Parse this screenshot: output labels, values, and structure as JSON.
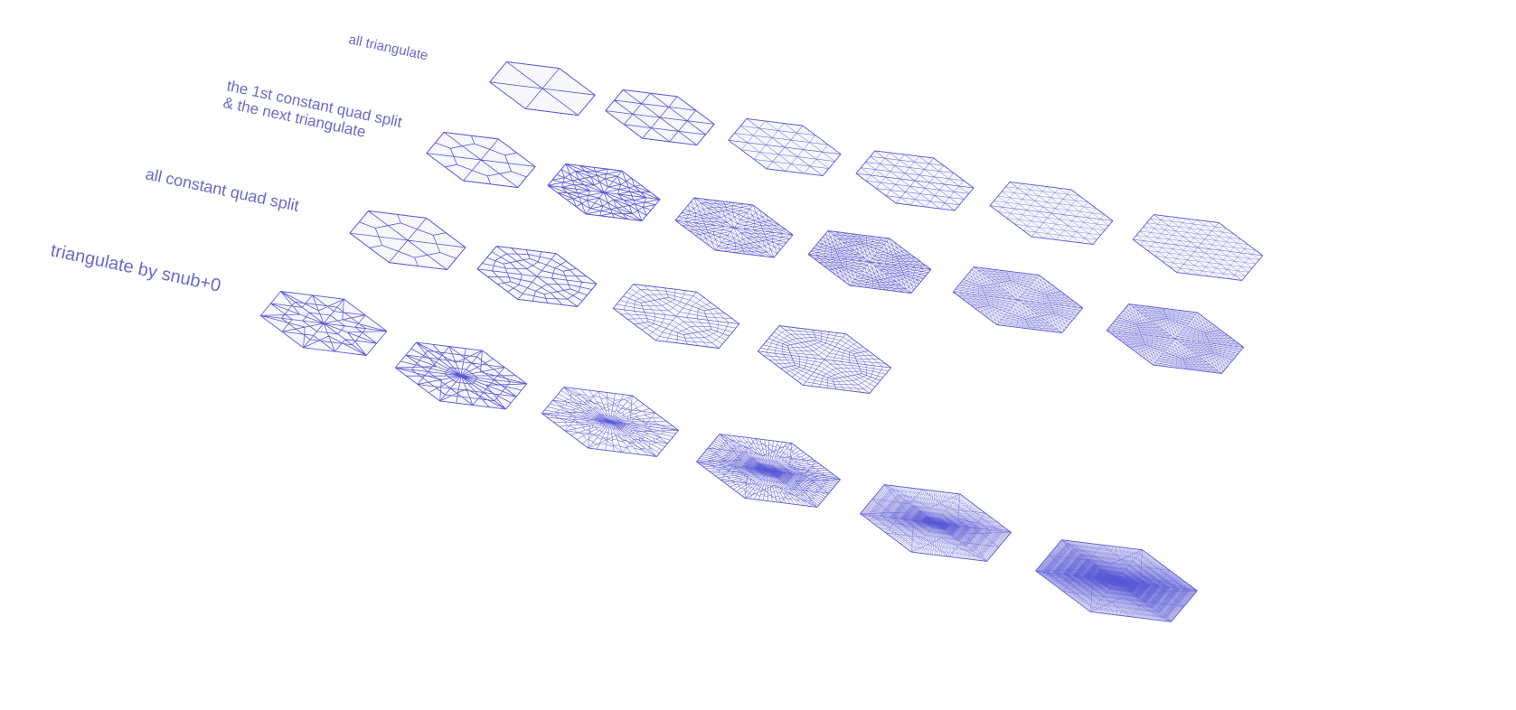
{
  "colors": {
    "label": "#6a6ac8",
    "wire": "#5a5ad6",
    "face_fill": "#f6f6fb",
    "background": "#ffffff"
  },
  "rows": [
    {
      "key": "all_triangulate",
      "label_lines": [
        "all triangulate"
      ],
      "levels": [
        1,
        2,
        3,
        4,
        5,
        6
      ],
      "pattern": "triangulate"
    },
    {
      "key": "first_quad_then_triangulate",
      "label_lines": [
        "the 1st constant quad split",
        "& the next triangulate"
      ],
      "levels": [
        1,
        2,
        3,
        4,
        5,
        6
      ],
      "pattern": "quad-then-tri"
    },
    {
      "key": "all_constant_quad_split",
      "label_lines": [
        "all constant quad split"
      ],
      "levels": [
        1,
        2,
        3,
        4
      ],
      "pattern": "quad"
    },
    {
      "key": "triangulate_by_snub",
      "label_lines": [
        "triangulate by snub+0"
      ],
      "levels": [
        1,
        2,
        3,
        4,
        5,
        6
      ],
      "pattern": "snub"
    }
  ]
}
